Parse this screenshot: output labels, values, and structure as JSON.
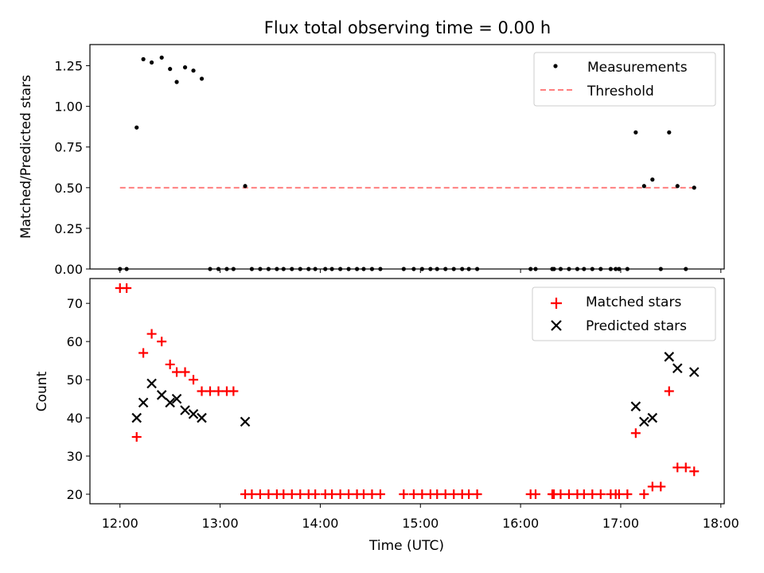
{
  "title": "Flux total observing time = 0.00 h",
  "colors": {
    "measurement": "#000000",
    "threshold": "#ff7f7f",
    "matched": "#ff0000",
    "predicted": "#000000"
  },
  "chart_data": [
    {
      "type": "scatter",
      "ylabel": "Matched/Predicted stars",
      "xlabel": "",
      "x_unit": "time (UTC)",
      "xlim": [
        "11:42",
        "18:02"
      ],
      "ylim": [
        0,
        1.38
      ],
      "yticks": [
        "0.00",
        "0.25",
        "0.50",
        "0.75",
        "1.00",
        "1.25"
      ],
      "grid": false,
      "legend_position": "upper right",
      "series": [
        {
          "name": "Measurements",
          "marker": "dot",
          "points": [
            [
              "12:00",
              0.0
            ],
            [
              "12:04",
              0.0
            ],
            [
              "12:10",
              0.87
            ],
            [
              "12:14",
              1.29
            ],
            [
              "12:19",
              1.27
            ],
            [
              "12:25",
              1.3
            ],
            [
              "12:30",
              1.23
            ],
            [
              "12:34",
              1.15
            ],
            [
              "12:39",
              1.24
            ],
            [
              "12:44",
              1.22
            ],
            [
              "12:49",
              1.17
            ],
            [
              "12:54",
              0.0
            ],
            [
              "12:59",
              0.0
            ],
            [
              "13:04",
              0.0
            ],
            [
              "13:08",
              0.0
            ],
            [
              "13:15",
              0.51
            ],
            [
              "13:19",
              0.0
            ],
            [
              "13:24",
              0.0
            ],
            [
              "13:29",
              0.0
            ],
            [
              "13:34",
              0.0
            ],
            [
              "13:38",
              0.0
            ],
            [
              "13:43",
              0.0
            ],
            [
              "13:48",
              0.0
            ],
            [
              "13:53",
              0.0
            ],
            [
              "13:57",
              0.0
            ],
            [
              "14:03",
              0.0
            ],
            [
              "14:07",
              0.0
            ],
            [
              "14:12",
              0.0
            ],
            [
              "14:17",
              0.0
            ],
            [
              "14:22",
              0.0
            ],
            [
              "14:26",
              0.0
            ],
            [
              "14:31",
              0.0
            ],
            [
              "14:36",
              0.0
            ],
            [
              "14:50",
              0.0
            ],
            [
              "14:56",
              0.0
            ],
            [
              "15:01",
              0.0
            ],
            [
              "15:06",
              0.0
            ],
            [
              "15:10",
              0.0
            ],
            [
              "15:15",
              0.0
            ],
            [
              "15:20",
              0.0
            ],
            [
              "15:25",
              0.0
            ],
            [
              "15:29",
              0.0
            ],
            [
              "15:34",
              0.0
            ],
            [
              "16:06",
              0.0
            ],
            [
              "16:09",
              0.0
            ],
            [
              "16:19",
              0.0
            ],
            [
              "16:20",
              0.0
            ],
            [
              "16:24",
              0.0
            ],
            [
              "16:29",
              0.0
            ],
            [
              "16:34",
              0.0
            ],
            [
              "16:38",
              0.0
            ],
            [
              "16:43",
              0.0
            ],
            [
              "16:48",
              0.0
            ],
            [
              "16:54",
              0.0
            ],
            [
              "16:57",
              0.0
            ],
            [
              "16:59",
              0.0
            ],
            [
              "17:04",
              0.0
            ],
            [
              "17:09",
              0.84
            ],
            [
              "17:14",
              0.51
            ],
            [
              "17:19",
              0.55
            ],
            [
              "17:24",
              0.0
            ],
            [
              "17:29",
              0.84
            ],
            [
              "17:34",
              0.51
            ],
            [
              "17:39",
              0.0
            ],
            [
              "17:44",
              0.5
            ]
          ]
        },
        {
          "name": "Threshold",
          "marker": "dashed-line",
          "points": [
            [
              "12:00",
              0.5
            ],
            [
              "17:44",
              0.5
            ]
          ]
        }
      ]
    },
    {
      "type": "scatter",
      "ylabel": "Count",
      "xlabel": "Time (UTC)",
      "x_unit": "time (UTC)",
      "xlim": [
        "11:42",
        "18:02"
      ],
      "ylim": [
        17.5,
        76.5
      ],
      "xticks": [
        "12:00",
        "13:00",
        "14:00",
        "15:00",
        "16:00",
        "17:00",
        "18:00"
      ],
      "yticks": [
        "20",
        "30",
        "40",
        "50",
        "60",
        "70"
      ],
      "grid": false,
      "legend_position": "upper right",
      "series": [
        {
          "name": "Matched stars",
          "marker": "plus",
          "points": [
            [
              "12:00",
              74
            ],
            [
              "12:04",
              74
            ],
            [
              "12:10",
              35
            ],
            [
              "12:14",
              57
            ],
            [
              "12:19",
              62
            ],
            [
              "12:25",
              60
            ],
            [
              "12:30",
              54
            ],
            [
              "12:34",
              52
            ],
            [
              "12:39",
              52
            ],
            [
              "12:44",
              50
            ],
            [
              "12:49",
              47
            ],
            [
              "12:54",
              47
            ],
            [
              "12:59",
              47
            ],
            [
              "13:04",
              47
            ],
            [
              "13:08",
              47
            ],
            [
              "13:15",
              20
            ],
            [
              "13:19",
              20
            ],
            [
              "13:24",
              20
            ],
            [
              "13:29",
              20
            ],
            [
              "13:34",
              20
            ],
            [
              "13:38",
              20
            ],
            [
              "13:43",
              20
            ],
            [
              "13:48",
              20
            ],
            [
              "13:53",
              20
            ],
            [
              "13:57",
              20
            ],
            [
              "14:03",
              20
            ],
            [
              "14:07",
              20
            ],
            [
              "14:12",
              20
            ],
            [
              "14:17",
              20
            ],
            [
              "14:22",
              20
            ],
            [
              "14:26",
              20
            ],
            [
              "14:31",
              20
            ],
            [
              "14:36",
              20
            ],
            [
              "14:50",
              20
            ],
            [
              "14:56",
              20
            ],
            [
              "15:01",
              20
            ],
            [
              "15:06",
              20
            ],
            [
              "15:10",
              20
            ],
            [
              "15:15",
              20
            ],
            [
              "15:20",
              20
            ],
            [
              "15:25",
              20
            ],
            [
              "15:29",
              20
            ],
            [
              "15:34",
              20
            ],
            [
              "16:06",
              20
            ],
            [
              "16:09",
              20
            ],
            [
              "16:19",
              20
            ],
            [
              "16:20",
              20
            ],
            [
              "16:24",
              20
            ],
            [
              "16:29",
              20
            ],
            [
              "16:34",
              20
            ],
            [
              "16:38",
              20
            ],
            [
              "16:43",
              20
            ],
            [
              "16:48",
              20
            ],
            [
              "16:54",
              20
            ],
            [
              "16:57",
              20
            ],
            [
              "16:59",
              20
            ],
            [
              "17:04",
              20
            ],
            [
              "17:09",
              36
            ],
            [
              "17:14",
              20
            ],
            [
              "17:19",
              22
            ],
            [
              "17:24",
              22
            ],
            [
              "17:29",
              47
            ],
            [
              "17:34",
              27
            ],
            [
              "17:39",
              27
            ],
            [
              "17:44",
              26
            ]
          ]
        },
        {
          "name": "Predicted stars",
          "marker": "x",
          "points": [
            [
              "12:10",
              40
            ],
            [
              "12:14",
              44
            ],
            [
              "12:19",
              49
            ],
            [
              "12:25",
              46
            ],
            [
              "12:30",
              44
            ],
            [
              "12:34",
              45
            ],
            [
              "12:39",
              42
            ],
            [
              "12:44",
              41
            ],
            [
              "12:49",
              40
            ],
            [
              "13:15",
              39
            ],
            [
              "17:09",
              43
            ],
            [
              "17:14",
              39
            ],
            [
              "17:19",
              40
            ],
            [
              "17:29",
              56
            ],
            [
              "17:34",
              53
            ],
            [
              "17:44",
              52
            ]
          ]
        }
      ]
    }
  ]
}
